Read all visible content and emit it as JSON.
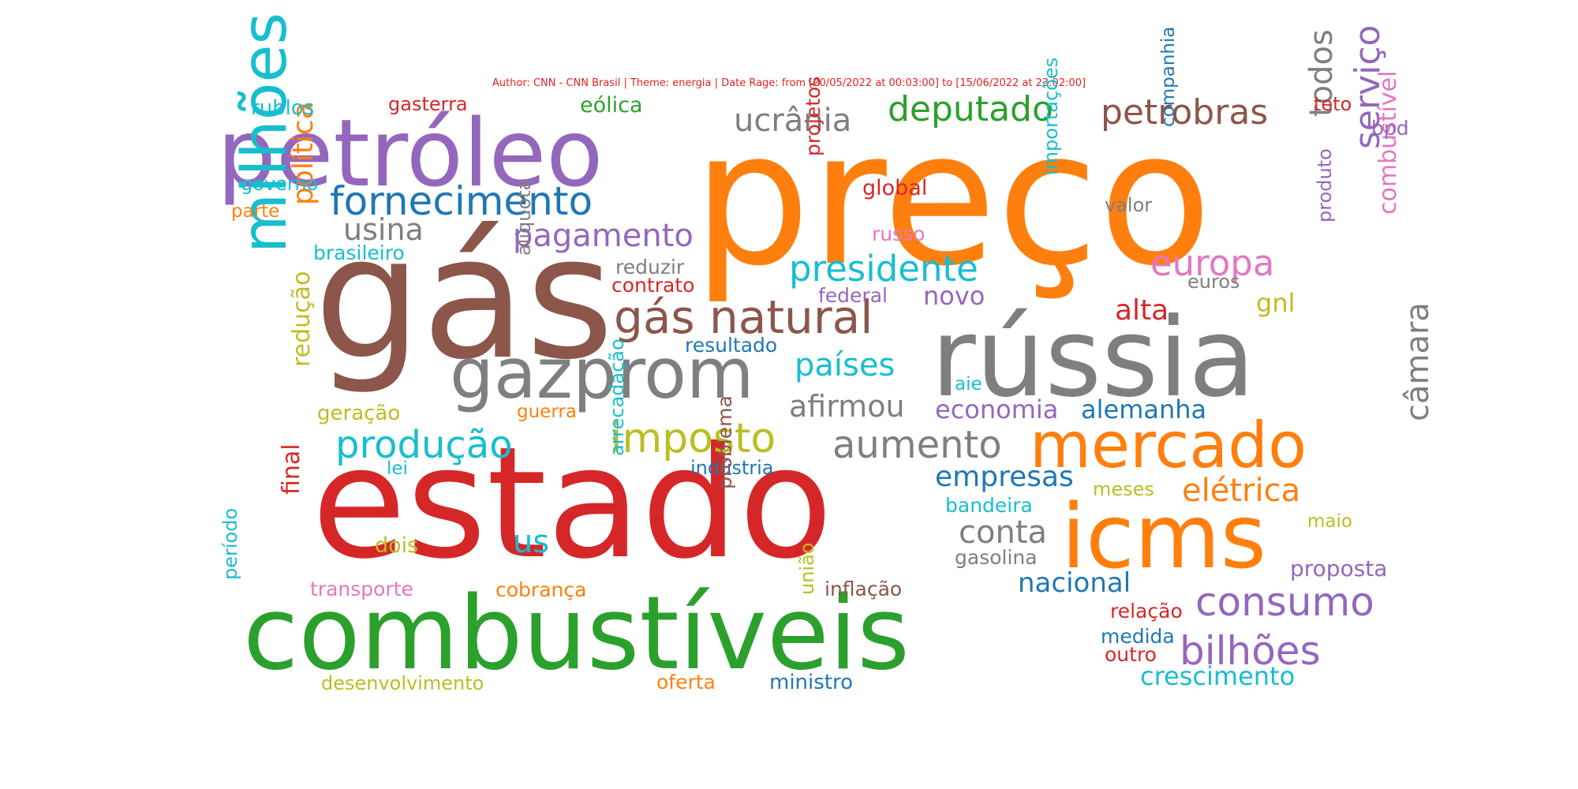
{
  "subtitle": "Author: CNN - CNN Brasil | Theme: energia | Date Rage: from [20/05/2022 at 00:03:00] to [15/06/2022 at 23:02:00]",
  "words": [
    {
      "text": "preço",
      "color": "#ff7f0e"
    },
    {
      "text": "gás",
      "color": "#8c564b"
    },
    {
      "text": "estado",
      "color": "#d62728"
    },
    {
      "text": "combustíveis",
      "color": "#2ca02c"
    },
    {
      "text": "rússia",
      "color": "#7f7f7f"
    },
    {
      "text": "petróleo",
      "color": "#9467bd"
    },
    {
      "text": "icms",
      "color": "#ff7f0e"
    },
    {
      "text": "gazprom",
      "color": "#7f7f7f"
    },
    {
      "text": "mercado",
      "color": "#ff7f0e"
    },
    {
      "text": "milhões",
      "color": "#17becf"
    },
    {
      "text": "gás natural",
      "color": "#8c564b"
    },
    {
      "text": "fornecimento",
      "color": "#1f77b4"
    },
    {
      "text": "imposto",
      "color": "#bcbd22"
    },
    {
      "text": "produção",
      "color": "#17becf"
    },
    {
      "text": "aumento",
      "color": "#7f7f7f"
    },
    {
      "text": "consumo",
      "color": "#9467bd"
    },
    {
      "text": "bilhões",
      "color": "#9467bd"
    },
    {
      "text": "petrobras",
      "color": "#8c564b"
    },
    {
      "text": "deputado",
      "color": "#2ca02c"
    },
    {
      "text": "presidente",
      "color": "#17becf"
    },
    {
      "text": "europa",
      "color": "#e377c2"
    },
    {
      "text": "serviço",
      "color": "#9467bd"
    },
    {
      "text": "ucrânia",
      "color": "#7f7f7f"
    },
    {
      "text": "pagamento",
      "color": "#9467bd"
    },
    {
      "text": "política",
      "color": "#ff7f0e"
    },
    {
      "text": "países",
      "color": "#17becf"
    },
    {
      "text": "conta",
      "color": "#7f7f7f"
    },
    {
      "text": "elétrica",
      "color": "#ff7f0e"
    },
    {
      "text": "câmara",
      "color": "#7f7f7f"
    },
    {
      "text": "todos",
      "color": "#7f7f7f"
    },
    {
      "text": "afirmou",
      "color": "#7f7f7f"
    },
    {
      "text": "empresas",
      "color": "#1f77b4"
    },
    {
      "text": "nacional",
      "color": "#1f77b4"
    },
    {
      "text": "usina",
      "color": "#7f7f7f"
    },
    {
      "text": "novo",
      "color": "#9467bd"
    },
    {
      "text": "alta",
      "color": "#d62728"
    },
    {
      "text": "combustível",
      "color": "#e377c2"
    },
    {
      "text": "economia",
      "color": "#9467bd"
    },
    {
      "text": "alemanha",
      "color": "#1f77b4"
    },
    {
      "text": "us",
      "color": "#17becf"
    },
    {
      "text": "crescimento",
      "color": "#17becf"
    },
    {
      "text": "redução",
      "color": "#bcbd22"
    },
    {
      "text": "final",
      "color": "#d62728"
    },
    {
      "text": "gnl",
      "color": "#bcbd22"
    },
    {
      "text": "proposta",
      "color": "#9467bd"
    },
    {
      "text": "geração",
      "color": "#bcbd22"
    },
    {
      "text": "brasileiro",
      "color": "#17becf"
    },
    {
      "text": "reduzir",
      "color": "#7f7f7f"
    },
    {
      "text": "contrato",
      "color": "#d62728"
    },
    {
      "text": "federal",
      "color": "#9467bd"
    },
    {
      "text": "resultado",
      "color": "#1f77b4"
    },
    {
      "text": "guerra",
      "color": "#ff7f0e"
    },
    {
      "text": "indústria",
      "color": "#1f77b4"
    },
    {
      "text": "bandeira",
      "color": "#17becf"
    },
    {
      "text": "meses",
      "color": "#bcbd22"
    },
    {
      "text": "maio",
      "color": "#bcbd22"
    },
    {
      "text": "gasolina",
      "color": "#7f7f7f"
    },
    {
      "text": "dois",
      "color": "#bcbd22"
    },
    {
      "text": "transporte",
      "color": "#e377c2"
    },
    {
      "text": "cobrança",
      "color": "#ff7f0e"
    },
    {
      "text": "inflação",
      "color": "#8c564b"
    },
    {
      "text": "relação",
      "color": "#d62728"
    },
    {
      "text": "medida",
      "color": "#1f77b4"
    },
    {
      "text": "outro",
      "color": "#d62728"
    },
    {
      "text": "desenvolvimento",
      "color": "#bcbd22"
    },
    {
      "text": "oferta",
      "color": "#ff7f0e"
    },
    {
      "text": "ministro",
      "color": "#1f77b4"
    },
    {
      "text": "rublos",
      "color": "#17becf"
    },
    {
      "text": "gasterra",
      "color": "#d62728"
    },
    {
      "text": "eólica",
      "color": "#2ca02c"
    },
    {
      "text": "teto",
      "color": "#d62728"
    },
    {
      "text": "bpd",
      "color": "#9467bd"
    },
    {
      "text": "governo",
      "color": "#17becf"
    },
    {
      "text": "parte",
      "color": "#ff7f0e"
    },
    {
      "text": "global",
      "color": "#d62728"
    },
    {
      "text": "russo",
      "color": "#e377c2"
    },
    {
      "text": "valor",
      "color": "#7f7f7f"
    },
    {
      "text": "euros",
      "color": "#7f7f7f"
    },
    {
      "text": "aie",
      "color": "#17becf"
    },
    {
      "text": "lei",
      "color": "#17becf"
    },
    {
      "text": "projetos",
      "color": "#d62728"
    },
    {
      "text": "alíquota",
      "color": "#7f7f7f"
    },
    {
      "text": "importações",
      "color": "#17becf"
    },
    {
      "text": "companhia",
      "color": "#1f77b4"
    },
    {
      "text": "produto",
      "color": "#9467bd"
    },
    {
      "text": "arrecadação",
      "color": "#17becf"
    },
    {
      "text": "problema",
      "color": "#8c564b"
    },
    {
      "text": "união",
      "color": "#bcbd22"
    },
    {
      "text": "período",
      "color": "#17becf"
    }
  ]
}
